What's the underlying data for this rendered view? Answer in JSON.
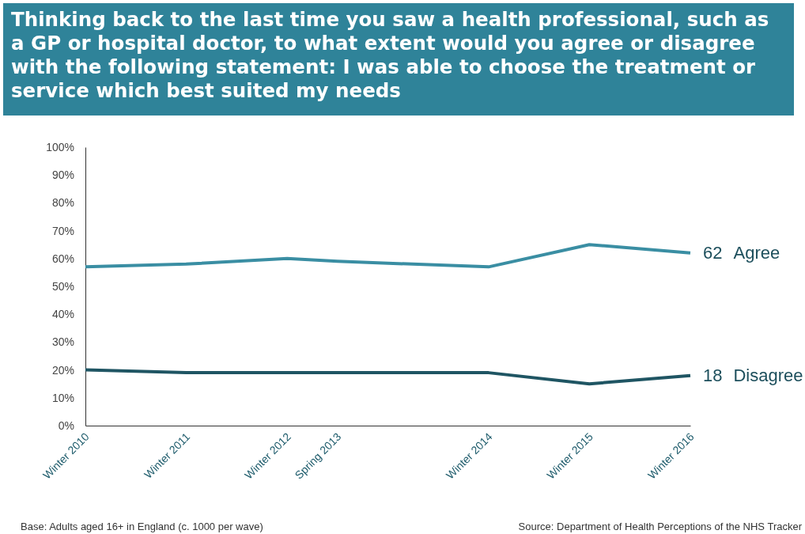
{
  "chart_data": {
    "type": "line",
    "title": "Thinking back to the last time you saw a health professional, such as a GP or hospital doctor, to what extent would you agree or disagree with the following statement: I was able to choose the treatment or service which best suited my needs",
    "x": [
      "2010-12",
      "2011-12",
      "2012-12",
      "2013-06",
      "2014-12",
      "2015-12",
      "2016-12"
    ],
    "xlim": [
      "2010-12",
      "2016-12"
    ],
    "xticks": [
      {
        "value": "2010-12",
        "label": "Winter 2010"
      },
      {
        "value": "2011-12",
        "label": "Winter 2011"
      },
      {
        "value": "2012-12",
        "label": "Winter 2012"
      },
      {
        "value": "2013-06",
        "label": "Spring 2013"
      },
      {
        "value": "2014-12",
        "label": "Winter 2014"
      },
      {
        "value": "2015-12",
        "label": "Winter 2015"
      },
      {
        "value": "2016-12",
        "label": "Winter 2016"
      }
    ],
    "ylim": [
      0,
      100
    ],
    "yticks": [
      {
        "value": 0,
        "label": "0%"
      },
      {
        "value": 10,
        "label": "10%"
      },
      {
        "value": 20,
        "label": "20%"
      },
      {
        "value": 30,
        "label": "30%"
      },
      {
        "value": 40,
        "label": "40%"
      },
      {
        "value": 50,
        "label": "50%"
      },
      {
        "value": 60,
        "label": "60%"
      },
      {
        "value": 70,
        "label": "70%"
      },
      {
        "value": 80,
        "label": "80%"
      },
      {
        "value": 90,
        "label": "90%"
      },
      {
        "value": 100,
        "label": "100%"
      }
    ],
    "series": [
      {
        "name": "Agree",
        "color": "#3a8ea3",
        "values": [
          57,
          58,
          60,
          59,
          57,
          65,
          62
        ],
        "value_labels": [
          null,
          null,
          null,
          null,
          null,
          null,
          "62"
        ]
      },
      {
        "name": "Disagree",
        "color": "#1f5563",
        "values": [
          20,
          19,
          19,
          19,
          19,
          15,
          18
        ],
        "value_labels": [
          null,
          null,
          null,
          null,
          null,
          null,
          "18"
        ]
      }
    ],
    "grid": false,
    "marker": "none",
    "line_style": "solid",
    "annotations": [
      "Base: Adults aged 16+ in England (c. 1000 per wave)",
      "Source: Department of Health Perceptions of the NHS Tracker"
    ]
  }
}
